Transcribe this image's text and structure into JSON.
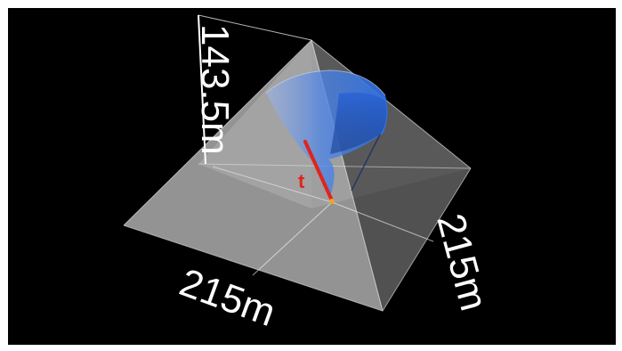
{
  "labels": {
    "height": "143.5m",
    "base_front": "215m",
    "base_right": "215m",
    "vector": "t"
  },
  "colors": {
    "background": "#000000",
    "pyramid_face": "#bfbfbf",
    "cone_surface": "#3a78e6",
    "vector": "#e0241c",
    "apex_point": "#f0a030",
    "axis_lines": "#ffffff"
  }
}
